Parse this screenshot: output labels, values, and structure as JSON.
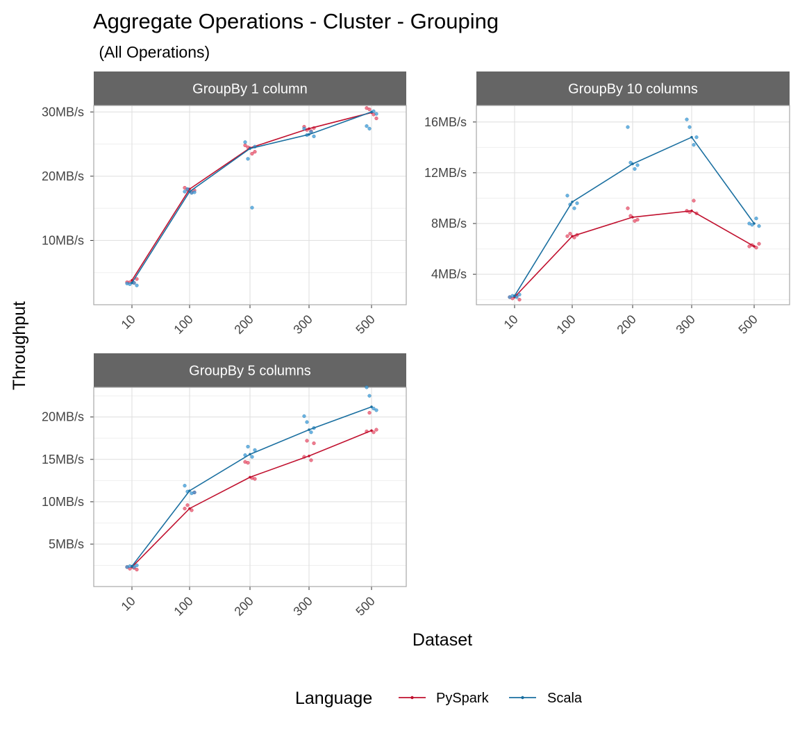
{
  "chart_data": {
    "type": "line",
    "title": "Aggregate Operations - Cluster - Grouping",
    "subtitle": " (All Operations)",
    "xlabel": "Dataset",
    "ylabel": "Throughput",
    "categories": [
      "10",
      "100",
      "200",
      "300",
      "500"
    ],
    "legend": {
      "title": "Language",
      "position": "bottom",
      "entries": [
        {
          "name": "PySpark",
          "color": "#C0102E"
        },
        {
          "name": "Scala",
          "color": "#1A6FA0"
        }
      ]
    },
    "point_colors": {
      "PySpark": "#E8506A",
      "Scala": "#3A9AD8"
    },
    "grid": true,
    "facets": [
      {
        "title": "GroupBy 1 column",
        "ylim": [
          0,
          31
        ],
        "y_ticks": [
          10,
          20,
          30
        ],
        "y_tick_labels": [
          "10MB/s",
          "20MB/s",
          "30MB/s"
        ],
        "series": [
          {
            "name": "PySpark",
            "values": [
              3.8,
              18.0,
              24.4,
              27.4,
              29.9
            ],
            "points": [
              [
                0,
                3.5
              ],
              [
                0,
                3.5
              ],
              [
                0,
                3.4
              ],
              [
                0,
                4.0
              ],
              [
                1,
                18.2
              ],
              [
                1,
                17.9
              ],
              [
                1,
                17.5
              ],
              [
                1,
                17.8
              ],
              [
                2,
                24.8
              ],
              [
                2,
                24.5
              ],
              [
                2,
                23.5
              ],
              [
                2,
                23.8
              ],
              [
                3,
                27.7
              ],
              [
                3,
                27.2
              ],
              [
                3,
                27.0
              ],
              [
                3,
                27.5
              ],
              [
                4,
                30.6
              ],
              [
                4,
                30.4
              ],
              [
                4,
                29.6
              ],
              [
                4,
                29.0
              ]
            ]
          },
          {
            "name": "Scala",
            "values": [
              3.4,
              17.6,
              24.3,
              26.5,
              30.0
            ],
            "points": [
              [
                0,
                3.3
              ],
              [
                0,
                3.2
              ],
              [
                0,
                3.4
              ],
              [
                0,
                3.0
              ],
              [
                1,
                17.6
              ],
              [
                1,
                18.0
              ],
              [
                1,
                17.4
              ],
              [
                1,
                17.5
              ],
              [
                2,
                25.3
              ],
              [
                2,
                22.7
              ],
              [
                2,
                15.1
              ],
              [
                2,
                24.6
              ],
              [
                3,
                27.4
              ],
              [
                3,
                26.4
              ],
              [
                3,
                26.9
              ],
              [
                3,
                26.2
              ],
              [
                4,
                27.8
              ],
              [
                4,
                27.4
              ],
              [
                4,
                30.1
              ],
              [
                4,
                29.7
              ]
            ]
          }
        ]
      },
      {
        "title": "GroupBy 10 columns",
        "ylim": [
          1.6,
          17.3
        ],
        "y_ticks": [
          4,
          8,
          12,
          16
        ],
        "y_tick_labels": [
          "4MB/s",
          "8MB/s",
          "12MB/s",
          "16MB/s"
        ],
        "series": [
          {
            "name": "PySpark",
            "values": [
              2.2,
              7.0,
              8.5,
              9.0,
              6.2
            ],
            "points": [
              [
                0,
                2.2
              ],
              [
                0,
                2.1
              ],
              [
                0,
                2.3
              ],
              [
                0,
                2.0
              ],
              [
                1,
                7.0
              ],
              [
                1,
                7.2
              ],
              [
                1,
                6.9
              ],
              [
                1,
                7.1
              ],
              [
                2,
                9.2
              ],
              [
                2,
                8.6
              ],
              [
                2,
                8.2
              ],
              [
                2,
                8.3
              ],
              [
                3,
                9.0
              ],
              [
                3,
                8.9
              ],
              [
                3,
                9.8
              ],
              [
                3,
                8.8
              ],
              [
                4,
                6.2
              ],
              [
                4,
                6.3
              ],
              [
                4,
                6.1
              ],
              [
                4,
                6.4
              ]
            ]
          },
          {
            "name": "Scala",
            "values": [
              2.3,
              9.7,
              12.7,
              14.8,
              8.0
            ],
            "points": [
              [
                0,
                2.2
              ],
              [
                0,
                2.3
              ],
              [
                0,
                2.2
              ],
              [
                0,
                2.4
              ],
              [
                1,
                10.2
              ],
              [
                1,
                9.5
              ],
              [
                1,
                9.2
              ],
              [
                1,
                9.6
              ],
              [
                2,
                15.6
              ],
              [
                2,
                12.8
              ],
              [
                2,
                12.3
              ],
              [
                2,
                12.6
              ],
              [
                3,
                16.2
              ],
              [
                3,
                15.6
              ],
              [
                3,
                14.2
              ],
              [
                3,
                14.8
              ],
              [
                4,
                8.0
              ],
              [
                4,
                7.9
              ],
              [
                4,
                8.4
              ],
              [
                4,
                7.8
              ]
            ]
          }
        ]
      },
      {
        "title": "GroupBy 5 columns",
        "ylim": [
          0,
          23.5
        ],
        "y_ticks": [
          5,
          10,
          15,
          20
        ],
        "y_tick_labels": [
          "5MB/s",
          "10MB/s",
          "15MB/s",
          "20MB/s"
        ],
        "series": [
          {
            "name": "PySpark",
            "values": [
              2.3,
              9.2,
              12.9,
              15.4,
              18.4
            ],
            "points": [
              [
                0,
                2.3
              ],
              [
                0,
                2.1
              ],
              [
                0,
                2.2
              ],
              [
                0,
                2.0
              ],
              [
                1,
                9.2
              ],
              [
                1,
                9.6
              ],
              [
                1,
                9.0
              ],
              [
                1,
                11.1
              ],
              [
                2,
                14.7
              ],
              [
                2,
                14.6
              ],
              [
                2,
                12.8
              ],
              [
                2,
                12.7
              ],
              [
                3,
                15.3
              ],
              [
                3,
                17.2
              ],
              [
                3,
                14.9
              ],
              [
                3,
                16.9
              ],
              [
                4,
                18.3
              ],
              [
                4,
                20.5
              ],
              [
                4,
                18.2
              ],
              [
                4,
                18.5
              ]
            ]
          },
          {
            "name": "Scala",
            "values": [
              2.4,
              11.3,
              15.6,
              18.5,
              21.2
            ],
            "points": [
              [
                0,
                2.3
              ],
              [
                0,
                2.4
              ],
              [
                0,
                2.3
              ],
              [
                0,
                2.5
              ],
              [
                1,
                11.9
              ],
              [
                1,
                11.2
              ],
              [
                1,
                11.0
              ],
              [
                1,
                11.1
              ],
              [
                2,
                15.5
              ],
              [
                2,
                16.5
              ],
              [
                2,
                15.3
              ],
              [
                2,
                16.1
              ],
              [
                3,
                20.1
              ],
              [
                3,
                19.4
              ],
              [
                3,
                18.2
              ],
              [
                3,
                18.7
              ],
              [
                4,
                23.5
              ],
              [
                4,
                22.5
              ],
              [
                4,
                21.0
              ],
              [
                4,
                20.8
              ]
            ]
          }
        ]
      }
    ]
  }
}
